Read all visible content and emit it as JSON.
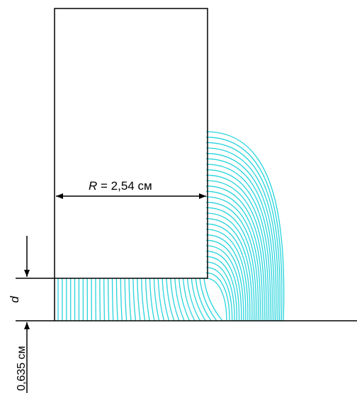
{
  "labels": {
    "radius_symbol": "R",
    "radius_value": " = 2,54 см",
    "gap_symbol": "d",
    "gap_value": "0,635 см"
  },
  "colors": {
    "outline": "#000000",
    "field_lines": "#26d4dc"
  },
  "field": {
    "lines_under_cylinder": 36,
    "fringe_lines": 28
  }
}
